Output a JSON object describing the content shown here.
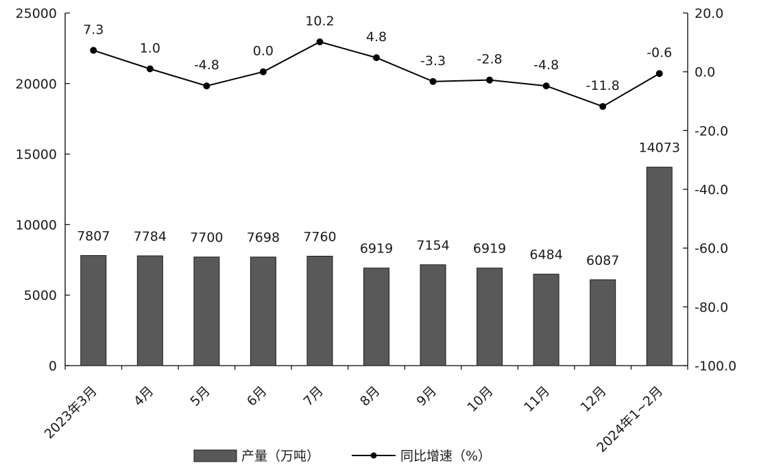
{
  "chart_data": {
    "type": "bar",
    "categories": [
      "2023年3月",
      "4月",
      "5月",
      "6月",
      "7月",
      "8月",
      "9月",
      "10月",
      "11月",
      "12月",
      "2024年1~2月"
    ],
    "series": [
      {
        "name": "产量（万吨）",
        "type": "bar",
        "axis": "left",
        "values": [
          7807,
          7784,
          7700,
          7698,
          7760,
          6919,
          7154,
          6919,
          6484,
          6087,
          14073
        ],
        "labels": [
          "7807",
          "7784",
          "7700",
          "7698",
          "7760",
          "6919",
          "7154",
          "6919",
          "6484",
          "6087",
          "14073"
        ],
        "color": "#595959"
      },
      {
        "name": "同比增速（%）",
        "type": "line",
        "axis": "right",
        "values": [
          7.3,
          1.0,
          -4.8,
          0.0,
          10.2,
          4.8,
          -3.3,
          -2.8,
          -4.8,
          -11.8,
          -0.6
        ],
        "labels": [
          "7.3",
          "1.0",
          "-4.8",
          "0.0",
          "10.2",
          "4.8",
          "-3.3",
          "-2.8",
          "-4.8",
          "-11.8",
          "-0.6"
        ],
        "color": "#000000"
      }
    ],
    "y_left": {
      "ylim": [
        0,
        25000
      ],
      "ticks": [
        0,
        5000,
        10000,
        15000,
        20000,
        25000
      ],
      "tick_labels": [
        "0",
        "5000",
        "10000",
        "15000",
        "20000",
        "25000"
      ]
    },
    "y_right": {
      "ylim": [
        -100,
        20
      ],
      "ticks": [
        -100,
        -80,
        -60,
        -40,
        -20,
        0,
        20
      ],
      "tick_labels": [
        "-100.0",
        "-80.0",
        "-60.0",
        "-40.0",
        "-20.0",
        "0.0",
        "20.0"
      ]
    },
    "legend_position": "bottom",
    "grid": false
  }
}
